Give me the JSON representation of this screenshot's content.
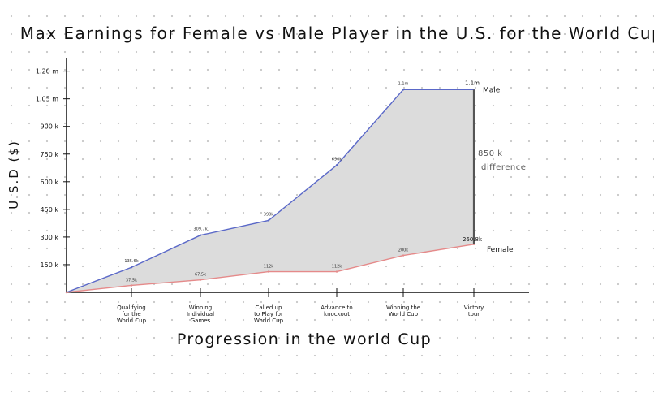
{
  "chart_data": {
    "type": "area",
    "title": "Max Earnings for Female vs Male Player in the U.S. for the World Cup",
    "xlabel": "Progression in the world Cup",
    "ylabel": "U.S.D ($)",
    "categories": [
      "",
      "Qualifying for the World Cup",
      "Winning Individual Games",
      "Called up to Play for World Cup",
      "Advance to knockout",
      "Winning the World Cup",
      "Victory tour"
    ],
    "category_lines": [
      [
        ""
      ],
      [
        "Qualifying",
        "for the",
        "World Cup"
      ],
      [
        "Winning",
        "Individual",
        "Games"
      ],
      [
        "Called up",
        "to Play for",
        "World Cup"
      ],
      [
        "Advance to",
        "knockout"
      ],
      [
        "Winning the",
        "World Cup"
      ],
      [
        "Victory",
        "tour"
      ]
    ],
    "yticks": [
      {
        "value": 150000,
        "label": "150 k"
      },
      {
        "value": 300000,
        "label": "300 k"
      },
      {
        "value": 450000,
        "label": "450 k"
      },
      {
        "value": 600000,
        "label": "600 k"
      },
      {
        "value": 750000,
        "label": "750 k"
      },
      {
        "value": 900000,
        "label": "900 k"
      },
      {
        "value": 1050000,
        "label": "1.05 m"
      },
      {
        "value": 1200000,
        "label": "1.20 m"
      }
    ],
    "ylim": [
      0,
      1260000
    ],
    "series": [
      {
        "name": "Male",
        "color": "#5a68c8",
        "values": [
          0,
          135600,
          309700,
          390000,
          690000,
          1100000,
          1100000
        ],
        "labels": [
          "",
          "135.6k",
          "309.7k",
          "390k",
          "690k",
          "1.1m",
          "1.1m"
        ]
      },
      {
        "name": "Female",
        "color": "#e58a8a",
        "values": [
          0,
          37500,
          67500,
          112000,
          112000,
          200000,
          260800
        ],
        "labels": [
          "",
          "37.5k",
          "67.5k",
          "112k",
          "112k",
          "200k",
          "260.8k"
        ]
      }
    ],
    "annotations": [
      {
        "text": "850 k difference",
        "lines": [
          "850 k",
          "difference"
        ]
      }
    ],
    "fill_color": "#dcdcdc",
    "grid": false,
    "legend": "inline-right"
  }
}
